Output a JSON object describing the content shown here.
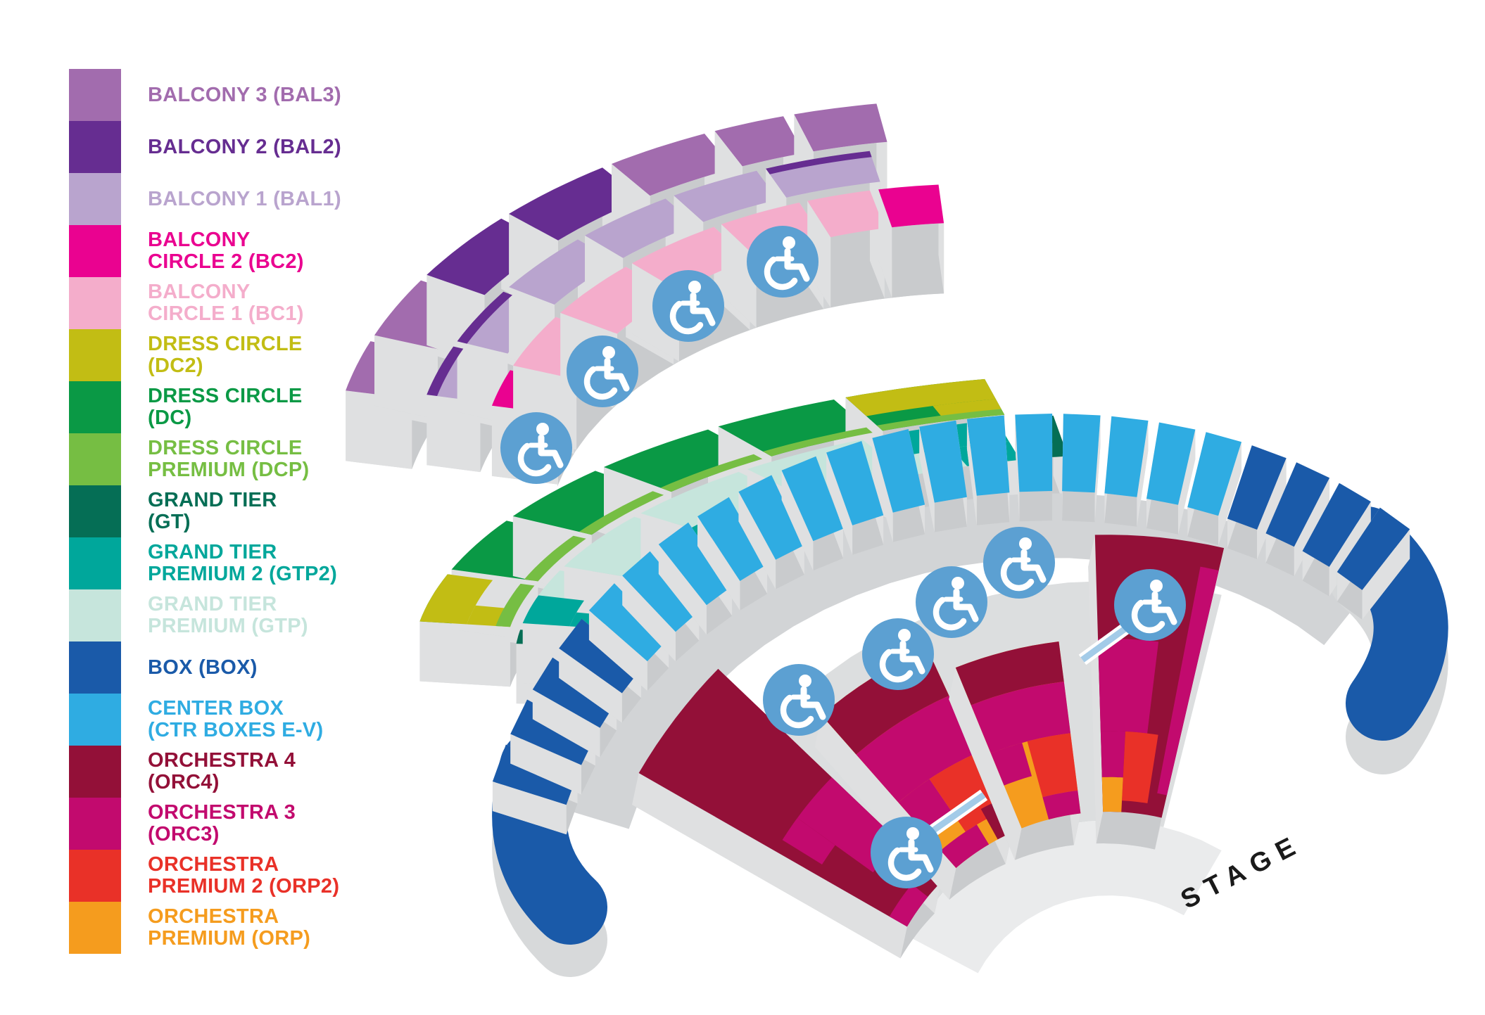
{
  "legend": {
    "items": [
      {
        "id": "bal3",
        "lines": [
          "BALCONY 3 (BAL3)"
        ],
        "color": "#A26CAE"
      },
      {
        "id": "bal2",
        "lines": [
          "BALCONY 2 (BAL2)"
        ],
        "color": "#662D91"
      },
      {
        "id": "bal1",
        "lines": [
          "BALCONY 1 (BAL1)"
        ],
        "color": "#B9A4CE"
      },
      {
        "id": "bc2",
        "lines": [
          "BALCONY",
          "CIRCLE 2 (BC2)"
        ],
        "color": "#EA0290"
      },
      {
        "id": "bc1",
        "lines": [
          "BALCONY",
          "CIRCLE 1 (BC1)"
        ],
        "color": "#F4ADCB"
      },
      {
        "id": "dc2",
        "lines": [
          "DRESS CIRCLE",
          "(DC2)"
        ],
        "color": "#C2BD14"
      },
      {
        "id": "dc",
        "lines": [
          "DRESS CIRCLE",
          "(DC)"
        ],
        "color": "#0A9945"
      },
      {
        "id": "dcp",
        "lines": [
          "DRESS CIRCLE",
          "PREMIUM (DCP)"
        ],
        "color": "#76BE43"
      },
      {
        "id": "gt",
        "lines": [
          "GRAND TIER",
          "(GT)"
        ],
        "color": "#056E55"
      },
      {
        "id": "gtp2",
        "lines": [
          "GRAND TIER",
          "PREMIUM 2 (GTP2)"
        ],
        "color": "#00A79B"
      },
      {
        "id": "gtp",
        "lines": [
          "GRAND TIER",
          "PREMIUM (GTP)"
        ],
        "color": "#C6E5DC"
      },
      {
        "id": "box",
        "lines": [
          "BOX (BOX)"
        ],
        "color": "#1A5AA9"
      },
      {
        "id": "ctr",
        "lines": [
          "CENTER BOX",
          "(CTR BOXES E-V)"
        ],
        "color": "#2FACE2"
      },
      {
        "id": "orc4",
        "lines": [
          "ORCHESTRA 4",
          "(ORC4)"
        ],
        "color": "#931038"
      },
      {
        "id": "orc3",
        "lines": [
          "ORCHESTRA 3",
          "(ORC3)"
        ],
        "color": "#C20A6E"
      },
      {
        "id": "orp2",
        "lines": [
          "ORCHESTRA",
          "PREMIUM 2 (ORP2)"
        ],
        "color": "#E93128"
      },
      {
        "id": "orp",
        "lines": [
          "ORCHESTRA",
          "PREMIUM (ORP)"
        ],
        "color": "#F59C1E"
      }
    ]
  },
  "map": {
    "stage_label": "STAGE",
    "accessible_icon_color": "#5CA0D2",
    "ramp_color": "#A3CBE8",
    "wheelchair_icon_count": 10
  }
}
